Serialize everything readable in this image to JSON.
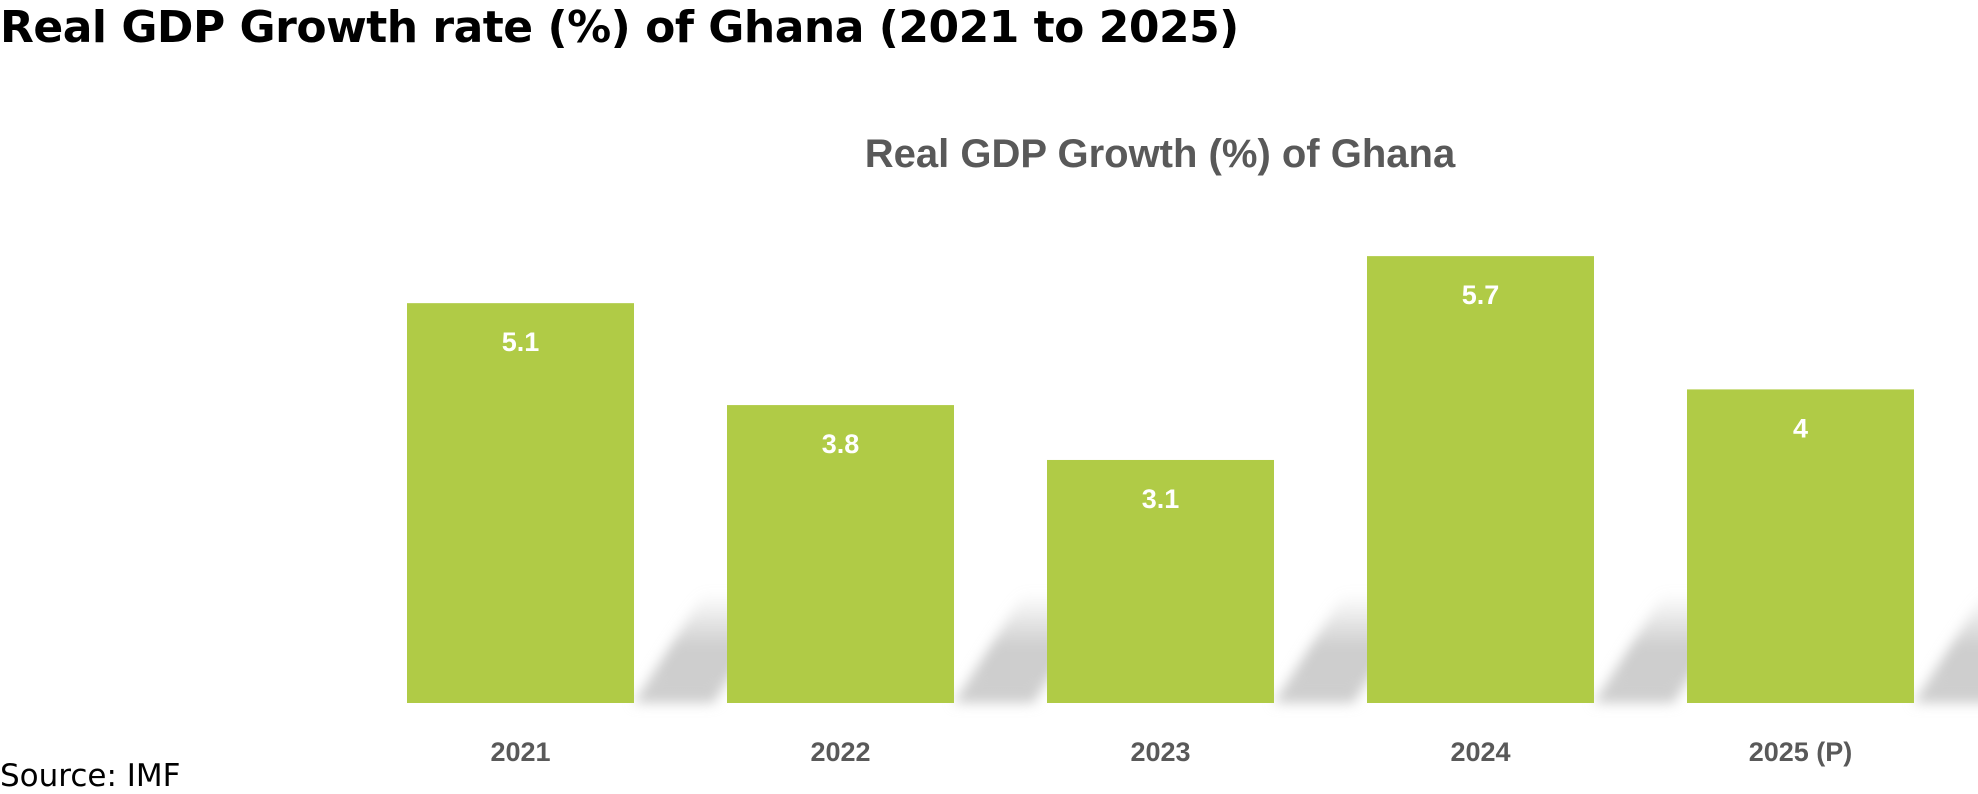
{
  "page_title": "Real GDP Growth rate (%) of Ghana (2021 to 2025)",
  "source": "Source: IMF",
  "chart_data": {
    "type": "bar",
    "title": "Real GDP Growth (%) of Ghana",
    "categories": [
      "2021",
      "2022",
      "2023",
      "2024",
      "2025 (P)"
    ],
    "values": [
      5.1,
      3.8,
      3.1,
      5.7,
      4
    ],
    "value_labels": [
      "5.1",
      "3.8",
      "3.1",
      "5.7",
      "4"
    ],
    "xlabel": "",
    "ylabel": "",
    "ylim": [
      0,
      5.7
    ],
    "grid": false,
    "legend": "none",
    "bar_color": "#B0CB46",
    "label_color": "#FFFFFF",
    "tick_color": "#595959"
  }
}
